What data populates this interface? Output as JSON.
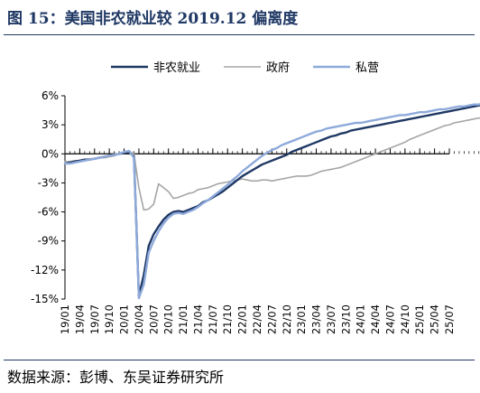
{
  "title": "图 15：美国非农就业较 2019.12 偏离度",
  "source": "数据来源：彭博、东吴证券研究所",
  "chart_data": {
    "type": "line",
    "title": "美国非农就业较 2019.12 偏离度",
    "yunit": "%",
    "ylim": [
      -15,
      6
    ],
    "yticks": [
      6,
      3,
      0,
      -3,
      -6,
      -9,
      -12,
      -15
    ],
    "ytick_labels": [
      "6%",
      "3%",
      "0%",
      "-3%",
      "-6%",
      "-9%",
      "-12%",
      "-15%"
    ],
    "xtick_labels": [
      "19/01",
      "19/04",
      "19/07",
      "19/10",
      "20/01",
      "20/04",
      "20/07",
      "20/10",
      "21/01",
      "21/04",
      "21/07",
      "21/10",
      "22/01",
      "22/04",
      "22/07",
      "22/10",
      "23/01",
      "23/04",
      "23/07",
      "23/10",
      "24/01",
      "24/04",
      "24/07",
      "24/10",
      "25/01",
      "25/04",
      "25/07"
    ],
    "legend_position": "top",
    "grid": false,
    "series": [
      {
        "name": "非农就业",
        "color": "#1f3864",
        "width": 2.4,
        "values": [
          -1.0,
          -0.9,
          -0.8,
          -0.7,
          -0.6,
          -0.6,
          -0.5,
          -0.4,
          -0.3,
          -0.2,
          -0.1,
          0.0,
          0.1,
          0.2,
          -0.3,
          -14.7,
          -12.5,
          -9.5,
          -8.3,
          -7.5,
          -6.8,
          -6.3,
          -6.0,
          -5.9,
          -6.0,
          -5.8,
          -5.6,
          -5.4,
          -5.0,
          -4.8,
          -4.5,
          -4.2,
          -3.9,
          -3.5,
          -3.1,
          -2.7,
          -2.3,
          -2.0,
          -1.7,
          -1.4,
          -1.1,
          -0.9,
          -0.7,
          -0.5,
          -0.3,
          -0.1,
          0.2,
          0.4,
          0.6,
          0.8,
          1.0,
          1.2,
          1.4,
          1.6,
          1.8,
          1.9,
          2.1,
          2.2,
          2.4,
          2.5,
          2.6,
          2.7,
          2.8,
          2.9,
          3.0,
          3.1,
          3.2,
          3.3,
          3.4,
          3.5,
          3.6,
          3.7,
          3.8,
          3.9,
          4.0,
          4.1,
          4.2,
          4.3,
          4.4,
          4.5,
          4.6,
          4.7,
          4.8,
          4.9,
          5.0,
          5.0,
          5.1,
          5.1,
          5.2,
          5.2,
          5.2,
          5.2,
          5.2,
          5.2,
          5.3,
          5.3,
          5.3,
          5.3,
          5.3,
          5.3
        ]
      },
      {
        "name": "政府",
        "color": "#a6a6a6",
        "width": 1.6,
        "values": [
          -0.8,
          -0.8,
          -0.7,
          -0.7,
          -0.6,
          -0.5,
          -0.5,
          -0.4,
          -0.4,
          -0.3,
          -0.2,
          0.0,
          0.2,
          0.3,
          0.0,
          -3.5,
          -5.8,
          -5.7,
          -5.2,
          -3.1,
          -3.5,
          -3.9,
          -4.6,
          -4.5,
          -4.3,
          -4.1,
          -4.0,
          -3.7,
          -3.6,
          -3.5,
          -3.3,
          -3.1,
          -3.0,
          -2.9,
          -2.8,
          -2.7,
          -2.6,
          -2.7,
          -2.8,
          -2.8,
          -2.7,
          -2.7,
          -2.8,
          -2.7,
          -2.6,
          -2.5,
          -2.4,
          -2.3,
          -2.3,
          -2.3,
          -2.2,
          -2.0,
          -1.8,
          -1.7,
          -1.6,
          -1.5,
          -1.4,
          -1.2,
          -1.0,
          -0.8,
          -0.6,
          -0.4,
          -0.2,
          0.0,
          0.2,
          0.4,
          0.6,
          0.8,
          1.0,
          1.2,
          1.5,
          1.7,
          1.9,
          2.1,
          2.3,
          2.5,
          2.7,
          2.9,
          3.0,
          3.2,
          3.3,
          3.4,
          3.5,
          3.6,
          3.7,
          3.7,
          3.8,
          3.8,
          3.9,
          3.9,
          4.0,
          3.9,
          3.9,
          3.9,
          3.8,
          3.8,
          3.9,
          3.9,
          3.9,
          3.8
        ]
      },
      {
        "name": "私营",
        "color": "#8eaadb",
        "width": 2.4,
        "values": [
          -1.0,
          -1.0,
          -0.9,
          -0.8,
          -0.7,
          -0.6,
          -0.5,
          -0.4,
          -0.3,
          -0.2,
          -0.1,
          0.0,
          0.2,
          0.3,
          -0.4,
          -14.9,
          -13.5,
          -10.2,
          -9.0,
          -8.0,
          -7.2,
          -6.6,
          -6.2,
          -6.1,
          -6.2,
          -6.0,
          -5.8,
          -5.5,
          -5.1,
          -4.8,
          -4.4,
          -4.0,
          -3.6,
          -3.2,
          -2.7,
          -2.3,
          -1.8,
          -1.4,
          -1.0,
          -0.6,
          -0.2,
          0.1,
          0.4,
          0.6,
          0.9,
          1.1,
          1.3,
          1.5,
          1.7,
          1.9,
          2.1,
          2.3,
          2.4,
          2.6,
          2.7,
          2.8,
          2.9,
          3.0,
          3.1,
          3.2,
          3.2,
          3.3,
          3.4,
          3.5,
          3.6,
          3.7,
          3.8,
          3.9,
          4.0,
          4.0,
          4.1,
          4.2,
          4.3,
          4.3,
          4.4,
          4.5,
          4.6,
          4.6,
          4.7,
          4.8,
          4.9,
          4.9,
          5.0,
          5.1,
          5.1,
          5.2,
          5.2,
          5.3,
          5.3,
          5.3,
          5.4,
          5.4,
          5.4,
          5.4,
          5.4,
          5.5,
          5.5,
          5.5,
          5.5,
          5.5
        ]
      }
    ]
  }
}
